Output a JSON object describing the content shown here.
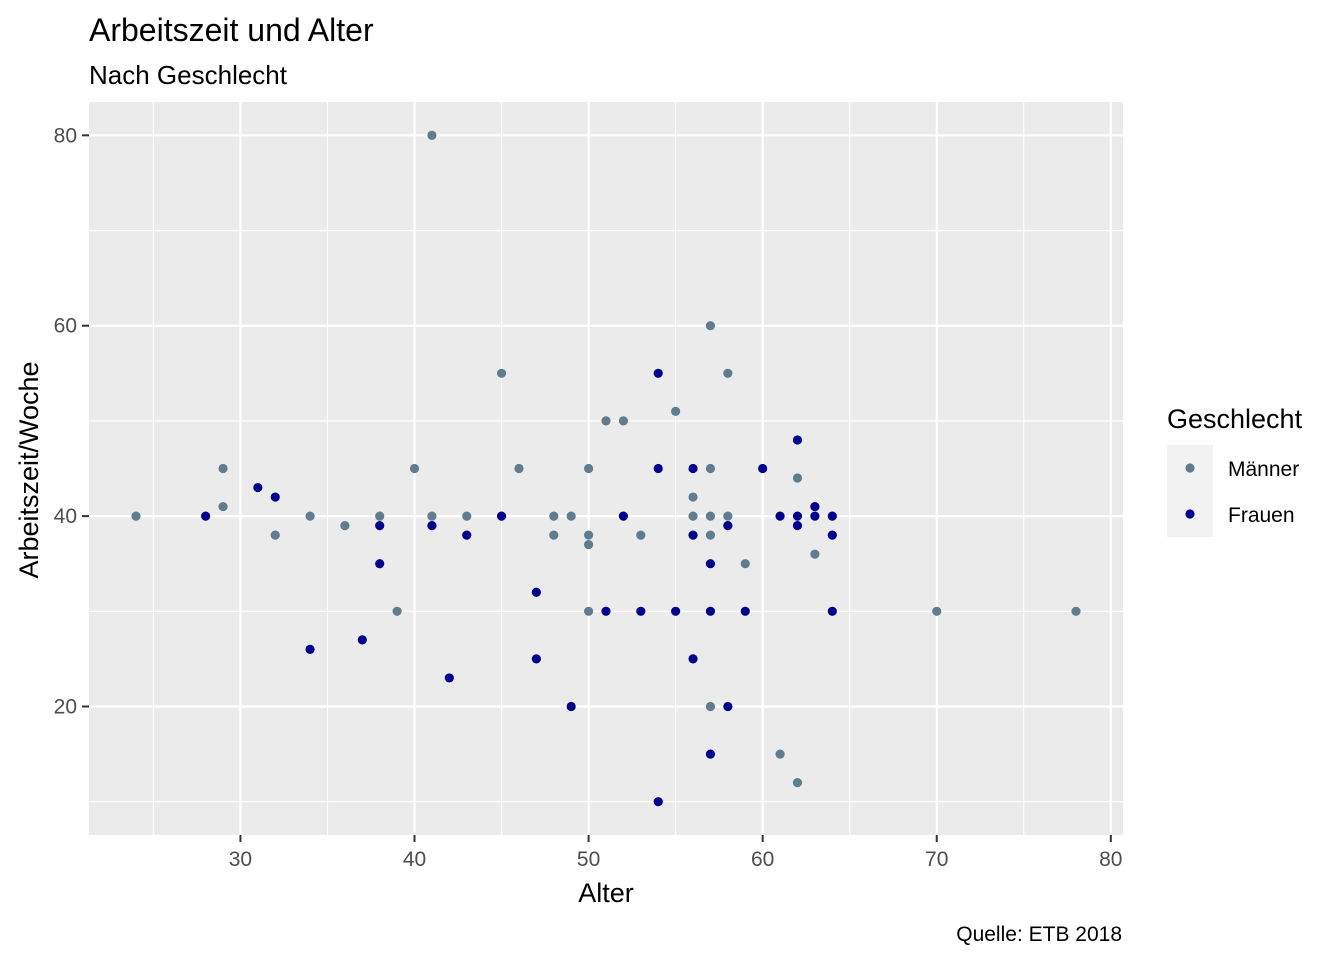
{
  "chart_data": {
    "type": "scatter",
    "title": "Arbeitszeit und Alter",
    "subtitle": "Nach Geschlecht",
    "xlabel": "Alter",
    "ylabel": "Arbeitszeit/Woche",
    "caption": "Quelle: ETB 2018",
    "xlim": [
      21.3,
      80.7
    ],
    "ylim": [
      6.5,
      83.5
    ],
    "x_ticks": [
      30,
      40,
      50,
      60,
      70,
      80
    ],
    "y_ticks": [
      20,
      40,
      60,
      80
    ],
    "grid": true,
    "legend": {
      "title": "Geschlecht",
      "placement": "right"
    },
    "series": [
      {
        "name": "Männer",
        "color": "#5f7d8f",
        "points": [
          [
            24,
            40
          ],
          [
            29,
            45
          ],
          [
            29,
            41
          ],
          [
            32,
            38
          ],
          [
            34,
            40
          ],
          [
            36,
            39
          ],
          [
            38,
            40
          ],
          [
            39,
            30
          ],
          [
            40,
            45
          ],
          [
            41,
            80
          ],
          [
            41,
            40
          ],
          [
            43,
            40
          ],
          [
            45,
            55
          ],
          [
            46,
            45
          ],
          [
            48,
            40
          ],
          [
            48,
            38
          ],
          [
            49,
            40
          ],
          [
            50,
            45
          ],
          [
            50,
            38
          ],
          [
            50,
            37
          ],
          [
            50,
            30
          ],
          [
            51,
            50
          ],
          [
            52,
            50
          ],
          [
            53,
            38
          ],
          [
            55,
            51
          ],
          [
            56,
            42
          ],
          [
            56,
            40
          ],
          [
            57,
            60
          ],
          [
            57,
            45
          ],
          [
            57,
            40
          ],
          [
            57,
            38
          ],
          [
            57,
            20
          ],
          [
            58,
            55
          ],
          [
            58,
            40
          ],
          [
            59,
            35
          ],
          [
            61,
            15
          ],
          [
            62,
            44
          ],
          [
            62,
            12
          ],
          [
            63,
            36
          ],
          [
            70,
            30
          ],
          [
            78,
            30
          ]
        ]
      },
      {
        "name": "Frauen",
        "color": "#00008b",
        "points": [
          [
            28,
            40
          ],
          [
            31,
            43
          ],
          [
            32,
            42
          ],
          [
            34,
            26
          ],
          [
            37,
            27
          ],
          [
            38,
            39
          ],
          [
            38,
            35
          ],
          [
            41,
            39
          ],
          [
            42,
            23
          ],
          [
            43,
            38
          ],
          [
            45,
            40
          ],
          [
            47,
            32
          ],
          [
            47,
            25
          ],
          [
            49,
            20
          ],
          [
            51,
            30
          ],
          [
            52,
            40
          ],
          [
            53,
            30
          ],
          [
            54,
            55
          ],
          [
            54,
            45
          ],
          [
            54,
            10
          ],
          [
            55,
            30
          ],
          [
            56,
            45
          ],
          [
            56,
            38
          ],
          [
            56,
            25
          ],
          [
            57,
            35
          ],
          [
            57,
            30
          ],
          [
            57,
            15
          ],
          [
            58,
            39
          ],
          [
            58,
            20
          ],
          [
            59,
            30
          ],
          [
            60,
            45
          ],
          [
            61,
            40
          ],
          [
            62,
            48
          ],
          [
            62,
            40
          ],
          [
            62,
            39
          ],
          [
            63,
            41
          ],
          [
            63,
            40
          ],
          [
            64,
            40
          ],
          [
            64,
            38
          ],
          [
            64,
            30
          ]
        ]
      }
    ]
  }
}
